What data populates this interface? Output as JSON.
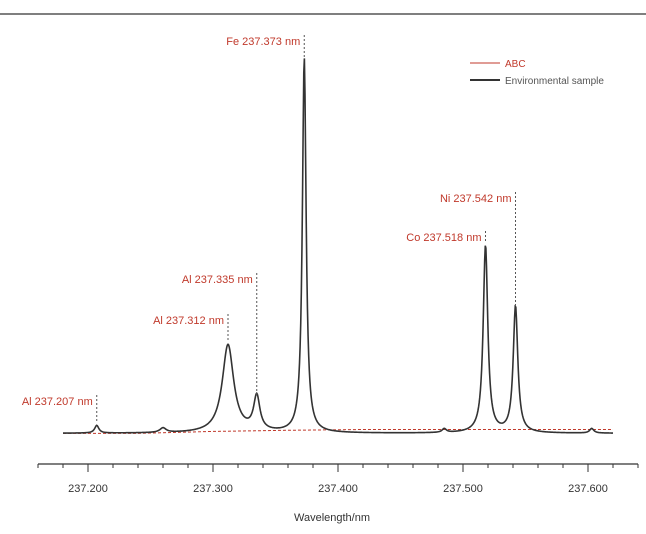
{
  "chart_data": {
    "type": "line",
    "xlabel": "Wavelength/nm",
    "ylabel": "",
    "xlim": [
      237.16,
      237.64
    ],
    "ylim": [
      0,
      1
    ],
    "xticks": [
      237.2,
      237.3,
      237.4,
      237.5,
      237.6
    ],
    "xtick_labels": [
      "237.200",
      "237.300",
      "237.400",
      "237.500",
      "237.600"
    ],
    "minor_tick_step": 0.02,
    "legend": "top-right",
    "series": [
      {
        "name": "ABC",
        "color": "#c0392b",
        "x": [
          237.18,
          237.24,
          237.3,
          237.36,
          237.42,
          237.48,
          237.54,
          237.6,
          237.62
        ],
        "y": [
          0.02,
          0.02,
          0.025,
          0.028,
          0.03,
          0.03,
          0.03,
          0.03,
          0.03
        ]
      },
      {
        "name": "Environmental sample",
        "color": "#333333",
        "baseline": 0.02,
        "x_start": 237.18,
        "x_end": 237.62,
        "peaks": [
          {
            "center": 237.207,
            "height": 0.02,
            "width": 0.002
          },
          {
            "center": 237.26,
            "height": 0.012,
            "width": 0.003
          },
          {
            "center": 237.312,
            "height": 0.23,
            "width": 0.0055
          },
          {
            "center": 237.335,
            "height": 0.09,
            "width": 0.003
          },
          {
            "center": 237.373,
            "height": 0.98,
            "width": 0.0018
          },
          {
            "center": 237.485,
            "height": 0.01,
            "width": 0.002
          },
          {
            "center": 237.518,
            "height": 0.49,
            "width": 0.0022
          },
          {
            "center": 237.542,
            "height": 0.33,
            "width": 0.0022
          },
          {
            "center": 237.603,
            "height": 0.012,
            "width": 0.002
          }
        ]
      }
    ],
    "annotations": [
      {
        "text": "Al 237.207 nm",
        "x": 237.207,
        "peak_y": 0.05
      },
      {
        "text": "Al 237.312 nm",
        "x": 237.312,
        "peak_y": 0.26
      },
      {
        "text": "Al 237.335 nm",
        "x": 237.335,
        "peak_y": 0.12
      },
      {
        "text": "Fe 237.373 nm",
        "x": 237.373,
        "peak_y": 1.0
      },
      {
        "text": "Co 237.518 nm",
        "x": 237.518,
        "peak_y": 0.52
      },
      {
        "text": "Ni 237.542 nm",
        "x": 237.542,
        "peak_y": 0.35
      }
    ],
    "annotation_color": "#c0392b"
  }
}
